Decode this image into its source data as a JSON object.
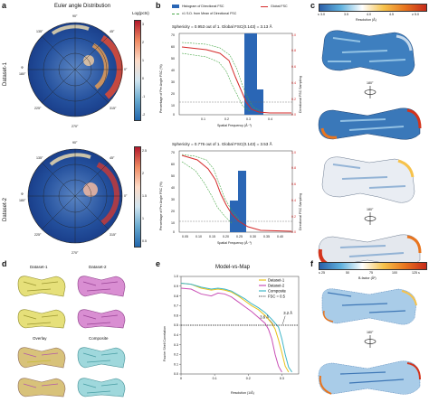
{
  "panels": {
    "a": {
      "letter": "a",
      "title": "Euler angle Distribution",
      "cbar_label": "Log(pcts)",
      "rows": [
        {
          "label": "Dataset-1",
          "cbar_ticks": [
            "3",
            "2",
            "1",
            "0",
            "-1",
            "-2"
          ]
        },
        {
          "label": "Dataset-2",
          "cbar_ticks": [
            "2.5",
            "2",
            "1.5",
            "1",
            "0.5"
          ]
        }
      ],
      "angle_labels": [
        "90°",
        "45°",
        "0°",
        "315°",
        "270°",
        "225°",
        "180°",
        "135°"
      ],
      "phi_label": "Φ"
    },
    "b": {
      "letter": "b",
      "legend": {
        "hist": "Histogram of Directional FSC",
        "sd": "±1 S.D. from Mean of Directional FSC",
        "global": "Global FSC"
      },
      "ylabel_left": "Percentage of Per Angle FSC (%)",
      "ylabel_right": "Directional FSC Sampling",
      "xlabel": "Spatial Frequency (Å⁻¹)",
      "plots": [
        {
          "caption": "Sphericity = 0.953 out of 1. Global FSC(0.143) = 3.13 Å",
          "yticks": [
            "70",
            "60",
            "50",
            "40",
            "30",
            "20",
            "10",
            "0"
          ],
          "xticks": [
            "0.1",
            "0.2",
            "0.3",
            "0.4"
          ],
          "right_ticks": [
            "1.0",
            "0.8",
            "0.6",
            "0.4",
            "0.2",
            "0.0"
          ]
        },
        {
          "caption": "Sphericity = 0.776 out of 1. Global FSC(0.143) = 3.53 Å",
          "yticks": [
            "70",
            "60",
            "50",
            "40",
            "30",
            "20",
            "10",
            "0"
          ],
          "xticks": [
            "0.05",
            "0.10",
            "0.15",
            "0.20",
            "0.25",
            "0.30",
            "0.35",
            "0.40"
          ],
          "right_ticks": [
            "1.0",
            "0.8",
            "0.6",
            "0.4",
            "0.2",
            "0.0"
          ]
        }
      ]
    },
    "c": {
      "letter": "c",
      "cbar_ticks": [
        "≤ 3.0",
        "3.5",
        "4.0",
        "4.5",
        "≥ 5.0"
      ],
      "cbar_label": "Resolution (Å)",
      "rotation": "180°"
    },
    "d": {
      "letter": "d",
      "labels": [
        "Dataset-1",
        "Dataset-2",
        "Overlay",
        "Composite"
      ]
    },
    "e": {
      "letter": "e",
      "title": "Model-vs-Map",
      "ylabel": "Fourier Shell Correlation",
      "xlabel": "Resolution (1/Å)",
      "yticks": [
        "1.0",
        "0.9",
        "0.8",
        "0.7",
        "0.6",
        "0.5",
        "0.4",
        "0.3",
        "0.2",
        "0.1",
        "0.0"
      ],
      "xticks": [
        "0",
        "0.1",
        "0.2",
        "0.3"
      ],
      "legend": [
        "Dataset-1",
        "Dataset-2",
        "Composite",
        "FSC = 0.5"
      ],
      "annotations": [
        "3.6 Å",
        "3.2 Å"
      ]
    },
    "f": {
      "letter": "f",
      "cbar_ticks": [
        "≤ 25",
        "50",
        "75",
        "100",
        "125 ≤"
      ],
      "cbar_label": "B-factor (Å²)",
      "rotation": "180°"
    }
  },
  "chart_data": [
    {
      "type": "line",
      "title": "Model-vs-Map",
      "xlabel": "Resolution (1/Å)",
      "ylabel": "Fourier Shell Correlation",
      "xlim": [
        0,
        0.35
      ],
      "ylim": [
        0,
        1.0
      ],
      "series": [
        {
          "name": "Dataset-1",
          "color": "#e8c21a",
          "x": [
            0.0,
            0.03,
            0.06,
            0.09,
            0.11,
            0.13,
            0.15,
            0.17,
            0.19,
            0.21,
            0.23,
            0.25,
            0.27,
            0.28,
            0.29,
            0.3,
            0.31,
            0.32
          ],
          "y": [
            0.93,
            0.92,
            0.88,
            0.86,
            0.87,
            0.86,
            0.84,
            0.8,
            0.75,
            0.7,
            0.66,
            0.6,
            0.52,
            0.46,
            0.35,
            0.22,
            0.08,
            0.02
          ]
        },
        {
          "name": "Dataset-2",
          "color": "#c94fb5",
          "x": [
            0.0,
            0.03,
            0.06,
            0.09,
            0.11,
            0.13,
            0.15,
            0.17,
            0.19,
            0.21,
            0.23,
            0.25,
            0.26,
            0.27,
            0.28,
            0.29,
            0.3
          ],
          "y": [
            0.88,
            0.87,
            0.82,
            0.8,
            0.83,
            0.82,
            0.79,
            0.74,
            0.69,
            0.64,
            0.58,
            0.52,
            0.46,
            0.36,
            0.2,
            0.08,
            0.02
          ]
        },
        {
          "name": "Composite",
          "color": "#3fb6c8",
          "x": [
            0.0,
            0.03,
            0.06,
            0.09,
            0.11,
            0.13,
            0.15,
            0.17,
            0.19,
            0.21,
            0.23,
            0.25,
            0.27,
            0.29,
            0.3,
            0.31,
            0.32,
            0.33
          ],
          "y": [
            0.93,
            0.92,
            0.89,
            0.87,
            0.88,
            0.87,
            0.85,
            0.81,
            0.77,
            0.72,
            0.68,
            0.63,
            0.56,
            0.48,
            0.36,
            0.2,
            0.07,
            0.02
          ]
        },
        {
          "name": "FSC = 0.5",
          "color": "#111111",
          "dashed": true,
          "x": [
            0.0,
            0.35
          ],
          "y": [
            0.5,
            0.5
          ]
        }
      ]
    }
  ]
}
